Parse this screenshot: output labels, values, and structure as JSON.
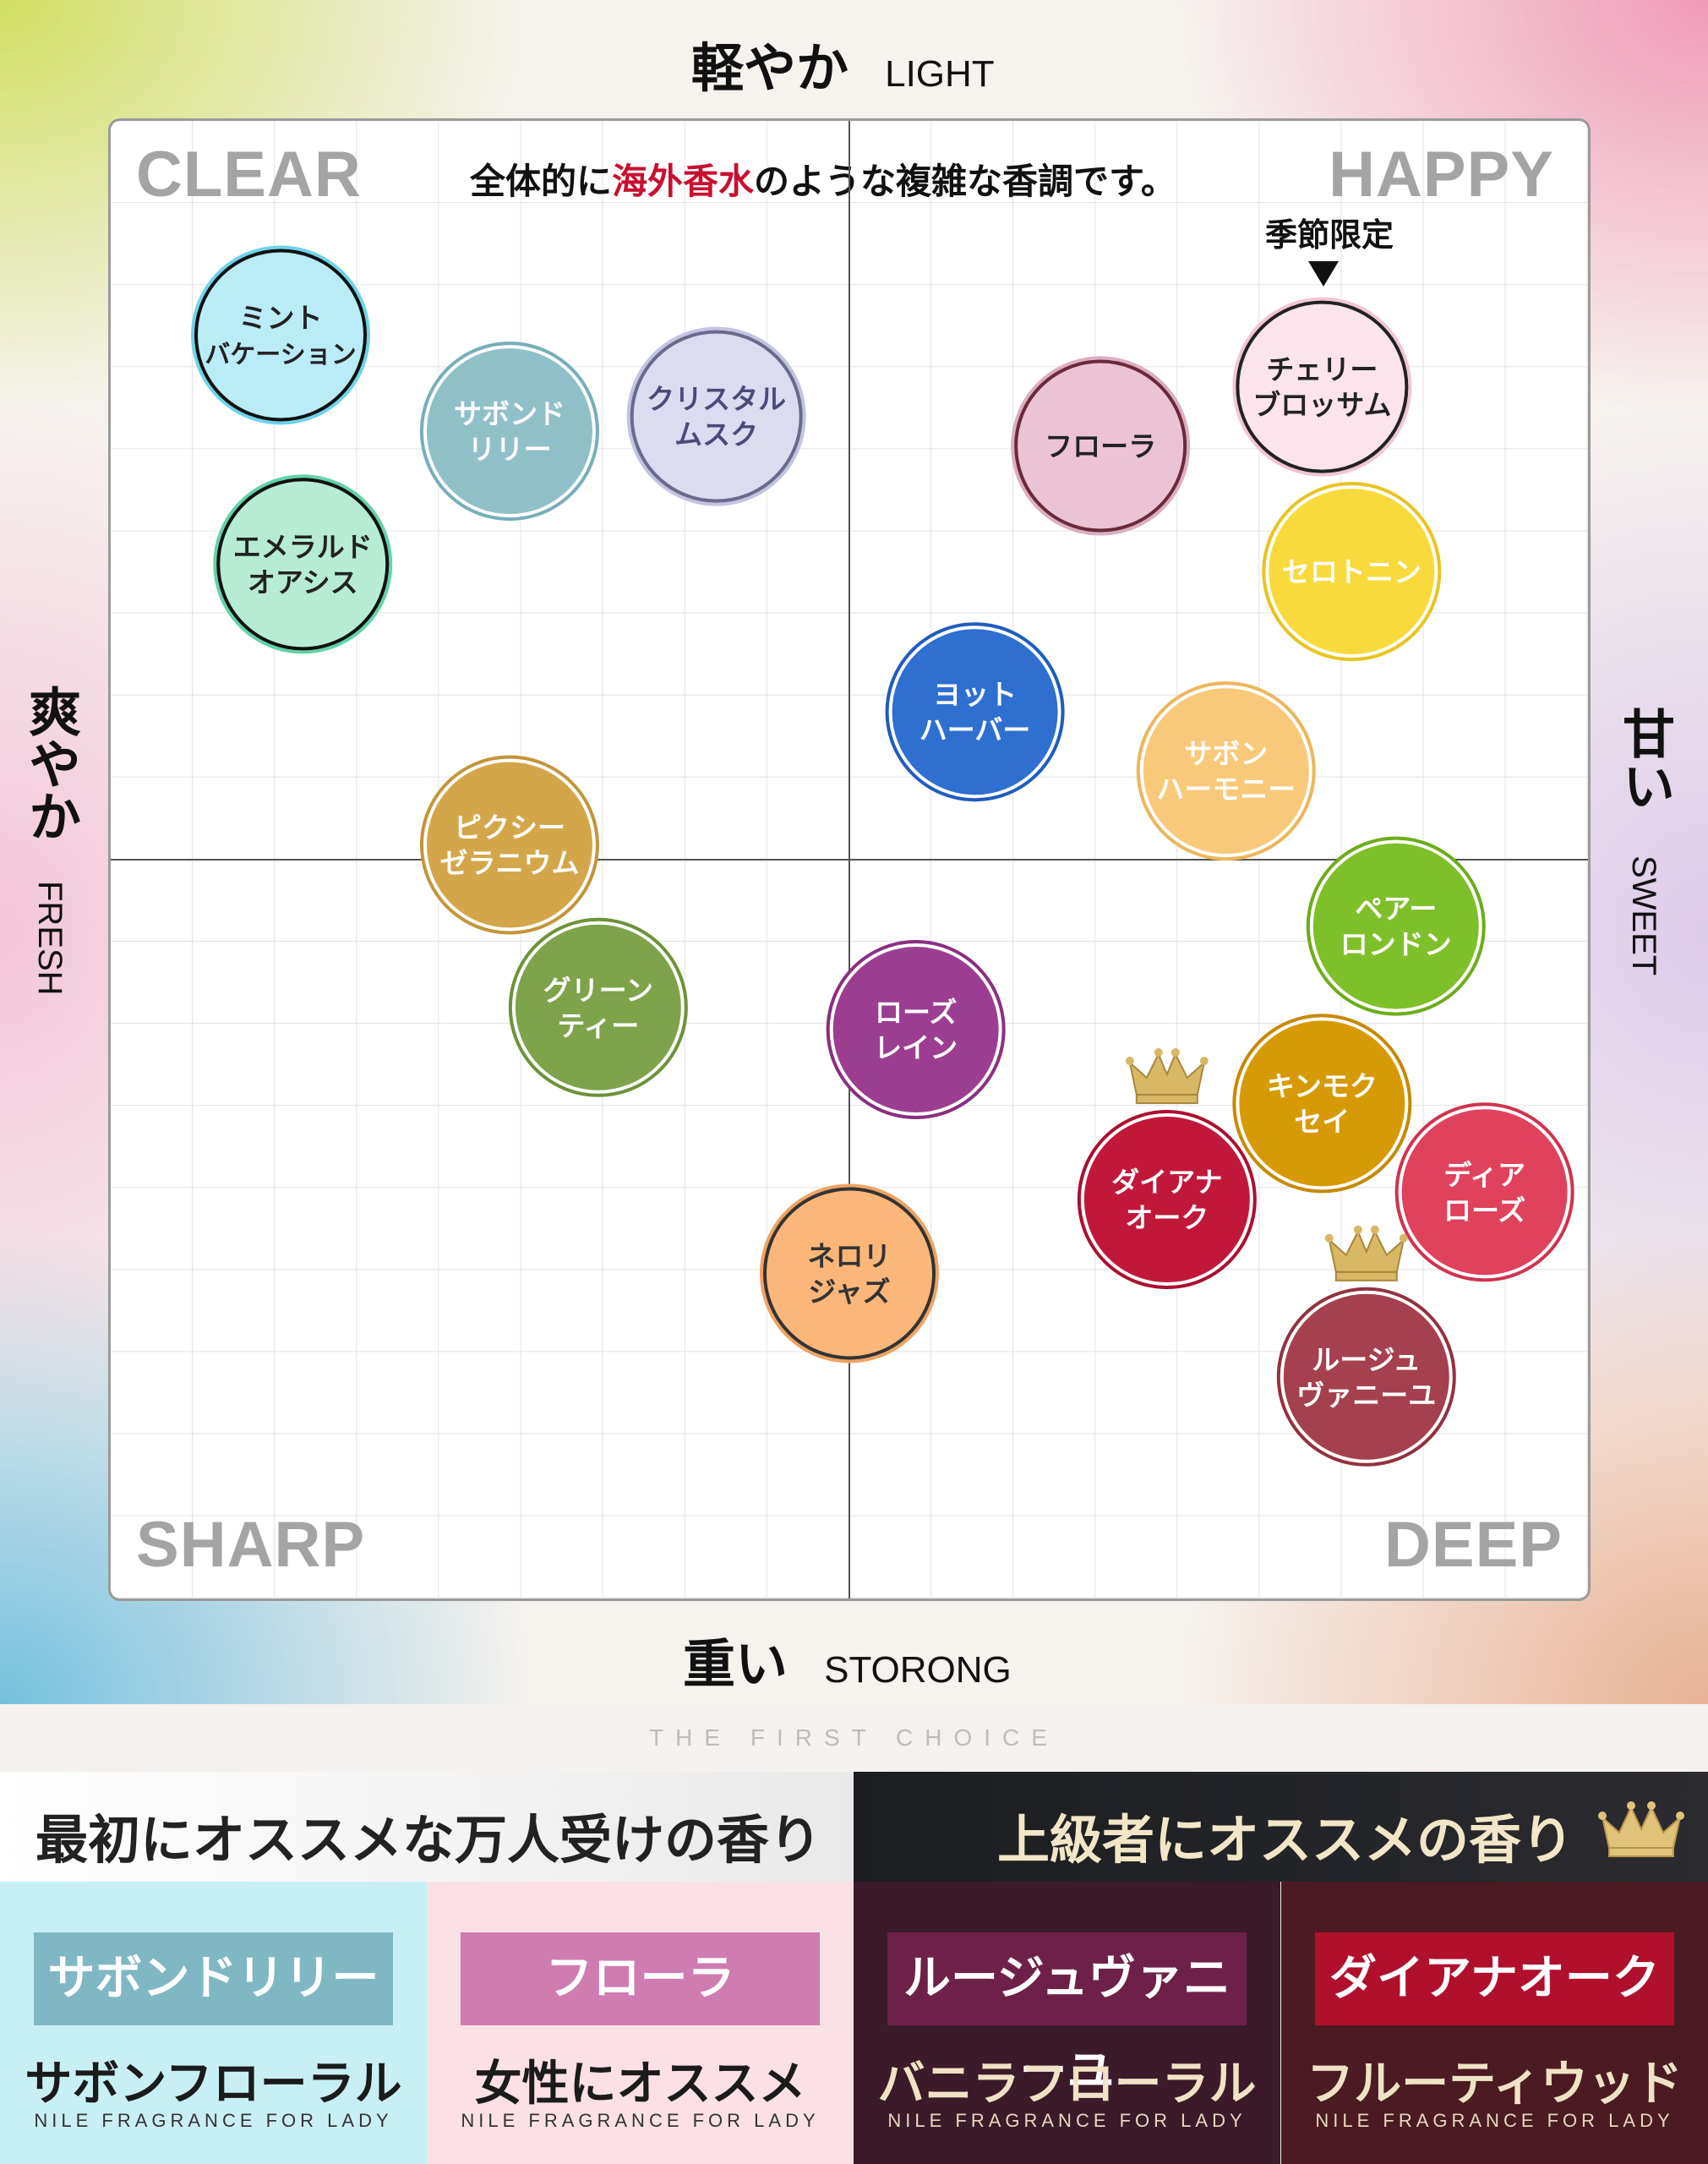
{
  "axes": {
    "top_jp": "軽やか",
    "top_en": "LIGHT",
    "bottom_jp": "重い",
    "bottom_en": "STORONG",
    "left_jp": "爽やか",
    "left_en": "FRESH",
    "right_jp": "甘い",
    "right_en": "SWEET"
  },
  "quadrants": {
    "top_left": "CLEAR",
    "top_right": "HAPPY",
    "bottom_left": "SHARP",
    "bottom_right": "DEEP"
  },
  "note": {
    "pre": "全体的に",
    "highlight": "海外香水",
    "post": "のような複雑な香調です。"
  },
  "seasonal_label": "季節限定",
  "tagline": "THE FIRST CHOICE",
  "chart_data": {
    "type": "scatter",
    "xlim": [
      -10,
      10
    ],
    "ylim": [
      -10,
      10
    ],
    "grid": true,
    "xlabel": "爽やか FRESH ⟷ 甘い SWEET",
    "ylabel": "重い STORONG ⟷ 軽やか LIGHT",
    "points": [
      {
        "lines": [
          "ミント",
          "バケーション"
        ],
        "x": -7.7,
        "y": 7.1,
        "fill": "#b9ecf6",
        "ring": "#111111",
        "text": "#222222",
        "halo": "#6fd3ea"
      },
      {
        "lines": [
          "サボンド",
          "リリー"
        ],
        "x": -4.6,
        "y": 5.8,
        "fill": "#8fc0c8",
        "ring": "#ffffff",
        "text": "#ffffff",
        "halo": "#77aeb9"
      },
      {
        "lines": [
          "クリスタル",
          "ムスク"
        ],
        "x": -1.8,
        "y": 6.0,
        "fill": "#dcdcf0",
        "ring": "#6a6a8a",
        "text": "#4a4a7a",
        "halo": "#c3c3e3"
      },
      {
        "lines": [
          "エメラルド",
          "オアシス"
        ],
        "x": -7.4,
        "y": 4.0,
        "fill": "#b6ecd4",
        "ring": "#111111",
        "text": "#222222",
        "halo": "#63d2a8"
      },
      {
        "lines": [
          "フローラ"
        ],
        "x": 3.4,
        "y": 5.6,
        "fill": "#ebc3d5",
        "ring": "#6a2a3a",
        "text": "#222222",
        "halo": "#dcaec3"
      },
      {
        "lines": [
          "チェリー",
          "ブロッサム"
        ],
        "x": 6.4,
        "y": 6.4,
        "fill": "#fde3ec",
        "ring": "#222222",
        "text": "#222222",
        "halo": "#f1c6d4"
      },
      {
        "lines": [
          "セロトニン"
        ],
        "x": 6.8,
        "y": 3.9,
        "fill": "#f8da3c",
        "ring": "#ffffff",
        "text": "#ffffff",
        "halo": "#e8c420"
      },
      {
        "lines": [
          "ヨット",
          "ハーバー"
        ],
        "x": 1.7,
        "y": 2.0,
        "fill": "#2e6fd0",
        "ring": "#ffffff",
        "text": "#ffffff",
        "halo": "#1f5cbd"
      },
      {
        "lines": [
          "サボン",
          "ハーモニー"
        ],
        "x": 5.1,
        "y": 1.2,
        "fill": "#f8c97a",
        "ring": "#ffffff",
        "text": "#ffffff",
        "halo": "#ecb65a"
      },
      {
        "lines": [
          "ピクシー",
          "ゼラニウム"
        ],
        "x": -4.6,
        "y": 0.2,
        "fill": "#d4a64a",
        "ring": "#ffffff",
        "text": "#ffffff",
        "halo": "#c3953a"
      },
      {
        "lines": [
          "ペアー",
          "ロンドン"
        ],
        "x": 7.4,
        "y": -0.9,
        "fill": "#7ec02a",
        "ring": "#ffffff",
        "text": "#ffffff",
        "halo": "#6bad1a"
      },
      {
        "lines": [
          "グリーン",
          "ティー"
        ],
        "x": -3.4,
        "y": -2.0,
        "fill": "#7ea34a",
        "ring": "#ffffff",
        "text": "#ffffff",
        "halo": "#6d923a"
      },
      {
        "lines": [
          "ローズ",
          "レイン"
        ],
        "x": 0.9,
        "y": -2.3,
        "fill": "#9b3e92",
        "ring": "#ffffff",
        "text": "#ffffff",
        "halo": "#8a2f82"
      },
      {
        "lines": [
          "キンモク",
          "セイ"
        ],
        "x": 6.4,
        "y": -3.3,
        "fill": "#d59a06",
        "ring": "#ffffff",
        "text": "#ffffff",
        "halo": "#c58a00"
      },
      {
        "lines": [
          "ダイアナ",
          "オーク"
        ],
        "x": 4.3,
        "y": -4.6,
        "fill": "#c1183a",
        "ring": "#ffffff",
        "text": "#ffffff",
        "halo": "#ad0f2f",
        "crown": true
      },
      {
        "lines": [
          "ディア",
          "ローズ"
        ],
        "x": 8.6,
        "y": -4.5,
        "fill": "#e0425c",
        "ring": "#ffffff",
        "text": "#ffffff",
        "halo": "#cf334d"
      },
      {
        "lines": [
          "ネロリ",
          "ジャズ"
        ],
        "x": 0.0,
        "y": -5.6,
        "fill": "#fbb67a",
        "ring": "#333333",
        "text": "#333333",
        "halo": "#f0a362"
      },
      {
        "lines": [
          "ルージュ",
          "ヴァニーユ"
        ],
        "x": 7.0,
        "y": -7.0,
        "fill": "#a5404e",
        "ring": "#ffffff",
        "text": "#ffffff",
        "halo": "#933240",
        "crown": true
      }
    ]
  },
  "bottom": {
    "header_left": "最初にオススメな万人受けの香り",
    "header_right": "上級者にオススメの香り",
    "cards": [
      {
        "name": "サボンドリリー",
        "desc": "サボンフローラル",
        "sub": "NILE FRAGRANCE FOR LADY",
        "pill": "#7fb8c2",
        "bg": "#c8f0f4",
        "desc_color": "#1b1b1b",
        "sub_color": "#333333"
      },
      {
        "name": "フローラ",
        "desc": "女性にオススメ",
        "sub": "NILE FRAGRANCE FOR LADY",
        "pill": "#cf7cb1",
        "bg": "#fbe0e6",
        "desc_color": "#1b1b1b",
        "sub_color": "#333333"
      },
      {
        "name": "ルージュヴァニーユ",
        "desc": "バニラフローラル",
        "sub": "NILE FRAGRANCE FOR LADY",
        "pill": "#6e2148",
        "bg": "#3b1a2a",
        "desc_color": "#f0e2c6",
        "sub_color": "#e6d8c0"
      },
      {
        "name": "ダイアナオーク",
        "desc": "フルーティウッド",
        "sub": "NILE FRAGRANCE FOR LADY",
        "pill": "#b0102b",
        "bg": "#4b1a22",
        "desc_color": "#f0e2c6",
        "sub_color": "#e6d8c0"
      }
    ]
  }
}
